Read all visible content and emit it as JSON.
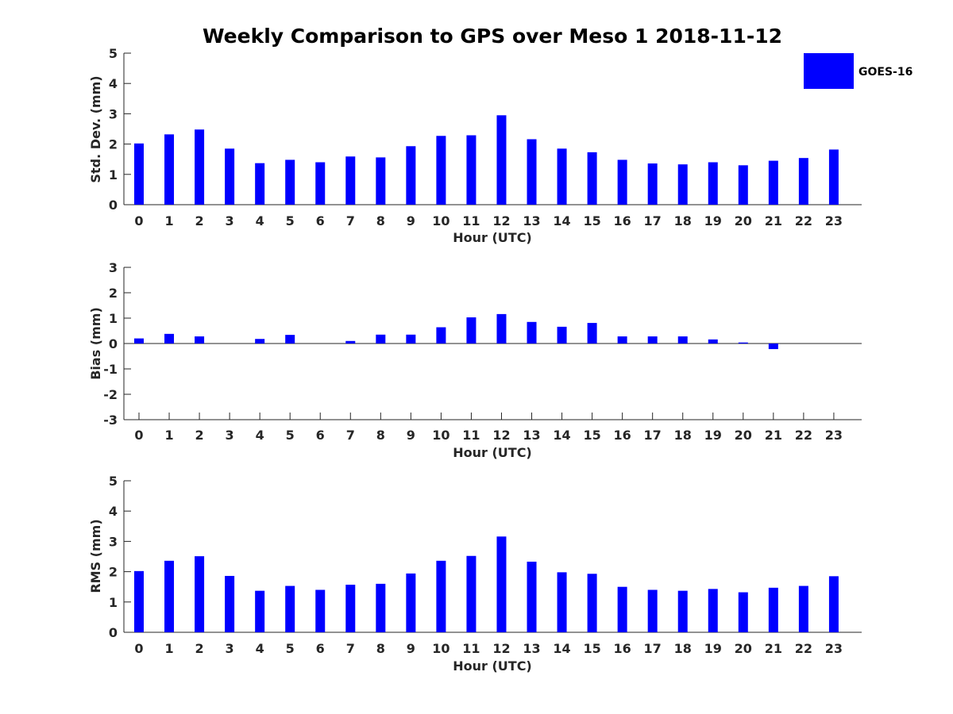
{
  "chart_data": {
    "type": "bar",
    "title": "Weekly Comparison to GPS over Meso 1 2018-11-12",
    "legend": {
      "label": "GOES-16",
      "color": "#0000ff",
      "placement": "top-right"
    },
    "xlabel": "Hour (UTC)",
    "categories": [
      "0",
      "1",
      "2",
      "3",
      "4",
      "5",
      "6",
      "7",
      "8",
      "9",
      "10",
      "11",
      "12",
      "13",
      "14",
      "15",
      "16",
      "17",
      "18",
      "19",
      "20",
      "21",
      "22",
      "23"
    ],
    "panels": [
      {
        "ylabel": "Std. Dev. (mm)",
        "ylim": [
          0,
          5
        ],
        "yticks": [
          "0",
          "1",
          "2",
          "3",
          "4",
          "5"
        ],
        "values": [
          2.02,
          2.32,
          2.48,
          1.85,
          1.37,
          1.48,
          1.4,
          1.59,
          1.56,
          1.93,
          2.27,
          2.29,
          2.95,
          2.16,
          1.85,
          1.73,
          1.48,
          1.36,
          1.33,
          1.4,
          1.3,
          1.45,
          1.54,
          1.82
        ]
      },
      {
        "ylabel": "Bias (mm)",
        "ylim": [
          -3,
          3
        ],
        "yticks": [
          "-3",
          "-2",
          "-1",
          "0",
          "1",
          "2",
          "3"
        ],
        "values": [
          0.2,
          0.38,
          0.28,
          0.0,
          0.18,
          0.34,
          0.0,
          0.1,
          0.35,
          0.35,
          0.64,
          1.03,
          1.16,
          0.85,
          0.66,
          0.81,
          0.28,
          0.28,
          0.28,
          0.16,
          0.04,
          -0.22,
          0.0,
          0.0
        ]
      },
      {
        "ylabel": "RMS (mm)",
        "ylim": [
          0,
          5
        ],
        "yticks": [
          "0",
          "1",
          "2",
          "3",
          "4",
          "5"
        ],
        "values": [
          2.02,
          2.36,
          2.51,
          1.86,
          1.37,
          1.53,
          1.4,
          1.57,
          1.6,
          1.94,
          2.36,
          2.52,
          3.16,
          2.33,
          1.98,
          1.93,
          1.5,
          1.4,
          1.37,
          1.43,
          1.32,
          1.47,
          1.53,
          1.85
        ]
      }
    ]
  }
}
